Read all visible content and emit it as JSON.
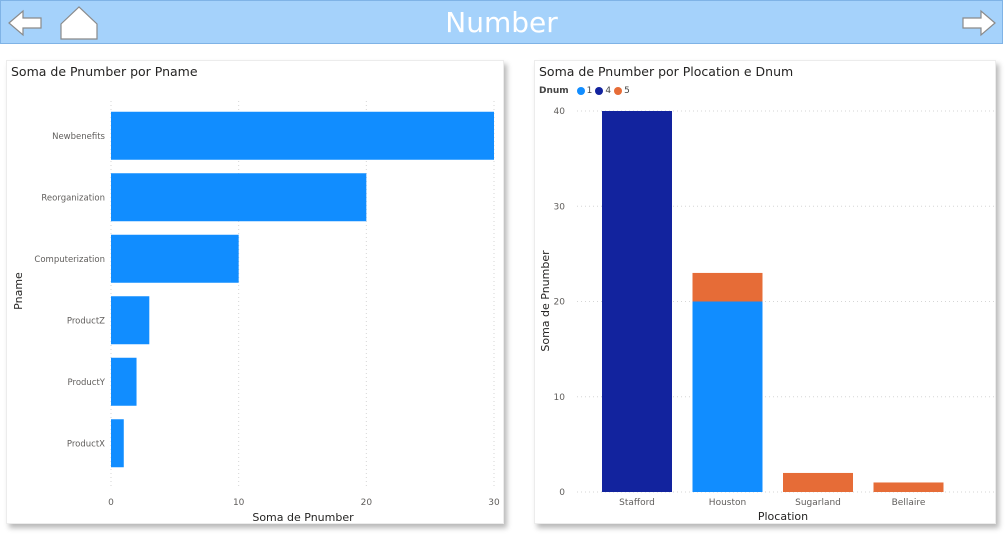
{
  "page": {
    "title": "Number"
  },
  "header": {
    "back_icon": "arrow-left-icon",
    "home_icon": "home-icon",
    "forward_icon": "arrow-right-icon",
    "background": "#a5d2fb"
  },
  "chart_data": [
    {
      "type": "bar",
      "orientation": "horizontal",
      "title": "Soma de Pnumber por Pname",
      "xlabel": "Soma de Pnumber",
      "ylabel": "Pname",
      "categories": [
        "Newbenefits",
        "Reorganization",
        "Computerization",
        "ProductZ",
        "ProductY",
        "ProductX"
      ],
      "values": [
        30,
        20,
        10,
        3,
        2,
        1
      ],
      "xticks": [
        "0",
        "10",
        "20",
        "30"
      ],
      "xlim": [
        0,
        30
      ],
      "color": "#118dff",
      "grid": "vertical dotted"
    },
    {
      "type": "bar",
      "stacked": true,
      "title": "Soma de Pnumber por Plocation e Dnum",
      "xlabel": "Plocation",
      "ylabel": "Soma de Pnumber",
      "legend_title": "Dnum",
      "categories": [
        "Stafford",
        "Houston",
        "Sugarland",
        "Bellaire"
      ],
      "series": [
        {
          "name": "1",
          "color": "#118dff",
          "values": [
            0,
            20,
            0,
            0
          ]
        },
        {
          "name": "4",
          "color": "#12239e",
          "values": [
            40,
            0,
            0,
            0
          ]
        },
        {
          "name": "5",
          "color": "#e66c37",
          "values": [
            0,
            3,
            2,
            1
          ]
        }
      ],
      "yticks": [
        "0",
        "10",
        "20",
        "30",
        "40"
      ],
      "ylim": [
        0,
        40
      ],
      "grid": "horizontal dotted",
      "legend_position": "top-left"
    }
  ]
}
